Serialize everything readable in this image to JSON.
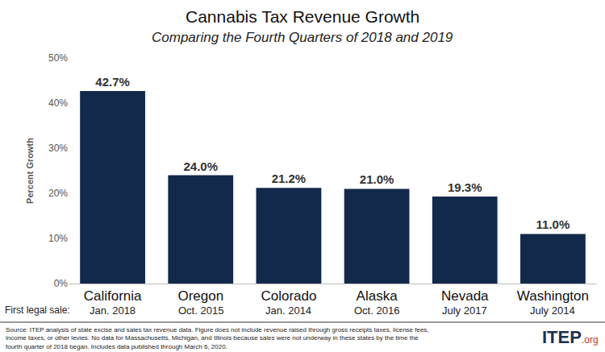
{
  "chart_data": {
    "type": "bar",
    "title": "Cannabis Tax Revenue Growth",
    "subtitle": "Comparing the Fourth Quarters of 2018 and 2019",
    "y_label": "Percent Growth",
    "categories": [
      "California",
      "Oregon",
      "Colorado",
      "Alaska",
      "Nevada",
      "Washington"
    ],
    "x_sublabel_title": "First legal sale:",
    "x_sublabels": [
      "Jan. 2018",
      "Oct. 2015",
      "Jan. 2014",
      "Oct. 2016",
      "July 2017",
      "July 2014"
    ],
    "values": [
      42.7,
      24.0,
      21.2,
      21.0,
      19.3,
      11.0
    ],
    "value_labels": [
      "42.7%",
      "24.0%",
      "21.2%",
      "21.0%",
      "19.3%",
      "11.0%"
    ],
    "data_labels": true,
    "color": "#13294b",
    "ylim": [
      0,
      50
    ],
    "yticks": [
      {
        "value": 0,
        "label": "0%"
      },
      {
        "value": 10,
        "label": "10%"
      },
      {
        "value": 20,
        "label": "20%"
      },
      {
        "value": 30,
        "label": "30%"
      },
      {
        "value": 40,
        "label": "40%"
      },
      {
        "value": 50,
        "label": "50%"
      }
    ],
    "grid": false,
    "source": [
      "Source: ITEP analysis of state excise and sales tax revenue data. Figure does not include revenue raised through gross receipts taxes, license fees,",
      "income taxes, or other levies. No data for Massachusetts, Michigan, and Illinois because sales were not underway in these states by the time the",
      "fourth quarter of 2018 began. Includes data published through March 6, 2020."
    ],
    "logo": [
      "ITEP",
      ".org"
    ]
  }
}
